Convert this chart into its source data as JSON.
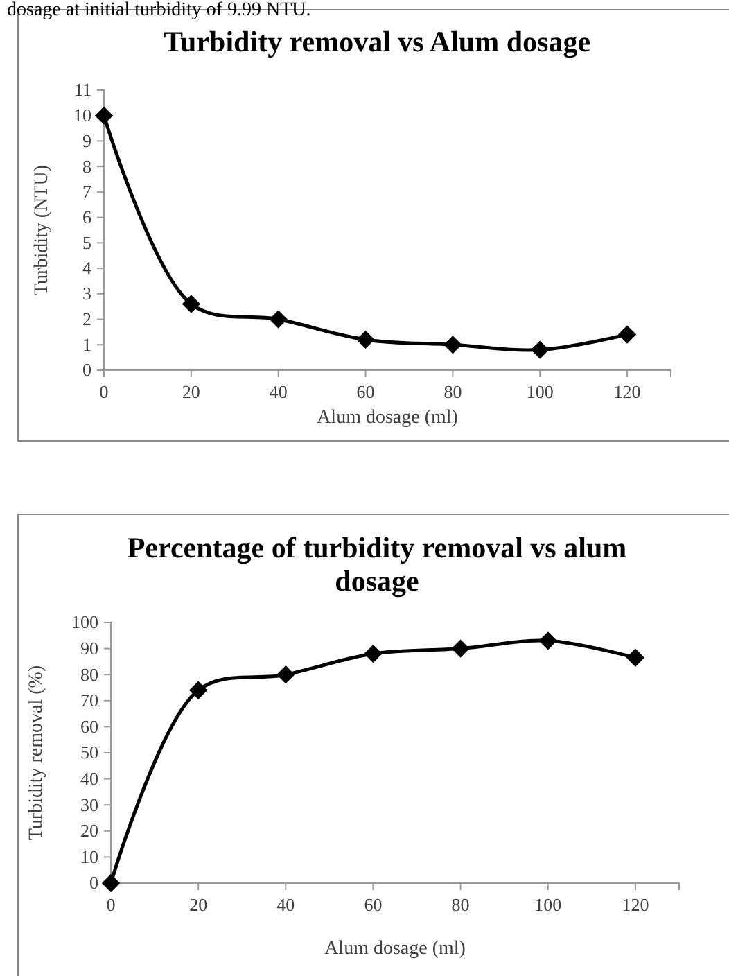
{
  "chart_data": [
    {
      "type": "line",
      "title": "Turbidity removal vs Alum dosage",
      "xlabel": "Alum dosage (ml)",
      "ylabel": "Turbidity (NTU)",
      "annotations": [
        "dosage at initial turbidity of 9.99 NTU."
      ],
      "x": [
        0,
        20,
        40,
        60,
        80,
        100,
        120
      ],
      "series": [
        {
          "color": "#000000",
          "values": [
            10,
            2.6,
            2.0,
            1.2,
            1.0,
            0.8,
            1.4
          ]
        }
      ],
      "xlim": [
        0,
        130
      ],
      "xticks": [
        0,
        20,
        40,
        60,
        80,
        100,
        120
      ],
      "ylim": [
        0,
        11
      ],
      "yticks": [
        0,
        1,
        2,
        3,
        4,
        5,
        6,
        7,
        8,
        9,
        10,
        11
      ],
      "marker": "diamond",
      "line_style": "solid",
      "grid": false
    },
    {
      "type": "line",
      "title": "Percentage of turbidity removal vs alum dosage",
      "xlabel": "Alum dosage (ml)",
      "ylabel": "Turbidity removal (%)",
      "x": [
        0,
        20,
        40,
        60,
        80,
        100,
        120
      ],
      "series": [
        {
          "color": "#000000",
          "values": [
            0,
            74,
            80,
            88,
            90,
            93,
            86.5
          ]
        }
      ],
      "xlim": [
        0,
        130
      ],
      "xticks": [
        0,
        20,
        40,
        60,
        80,
        100,
        120
      ],
      "ylim": [
        0,
        100
      ],
      "yticks": [
        0,
        10,
        20,
        30,
        40,
        50,
        60,
        70,
        80,
        90,
        100
      ],
      "marker": "diamond",
      "line_style": "solid",
      "grid": false
    }
  ]
}
